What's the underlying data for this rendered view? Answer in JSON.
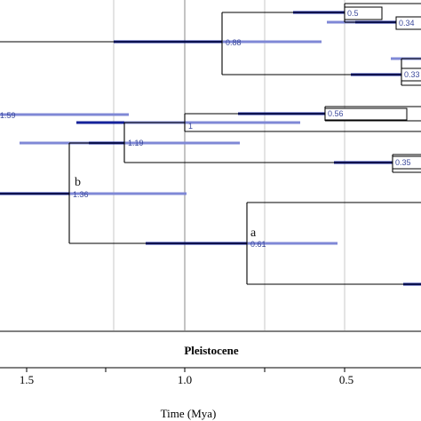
{
  "tree": {
    "support_values": [
      "0.5",
      "0.34",
      "0.88",
      "0.33",
      "1.59",
      "0.56",
      "1",
      "1.19",
      "0.35",
      "1.36",
      "0.61"
    ],
    "clade_labels": [
      "a",
      "b"
    ]
  },
  "time_axis": {
    "epoch_label": "Pleistocene",
    "tick_labels": [
      "1.5",
      "1.0",
      "0.5"
    ],
    "title": "Time (Mya)"
  }
}
